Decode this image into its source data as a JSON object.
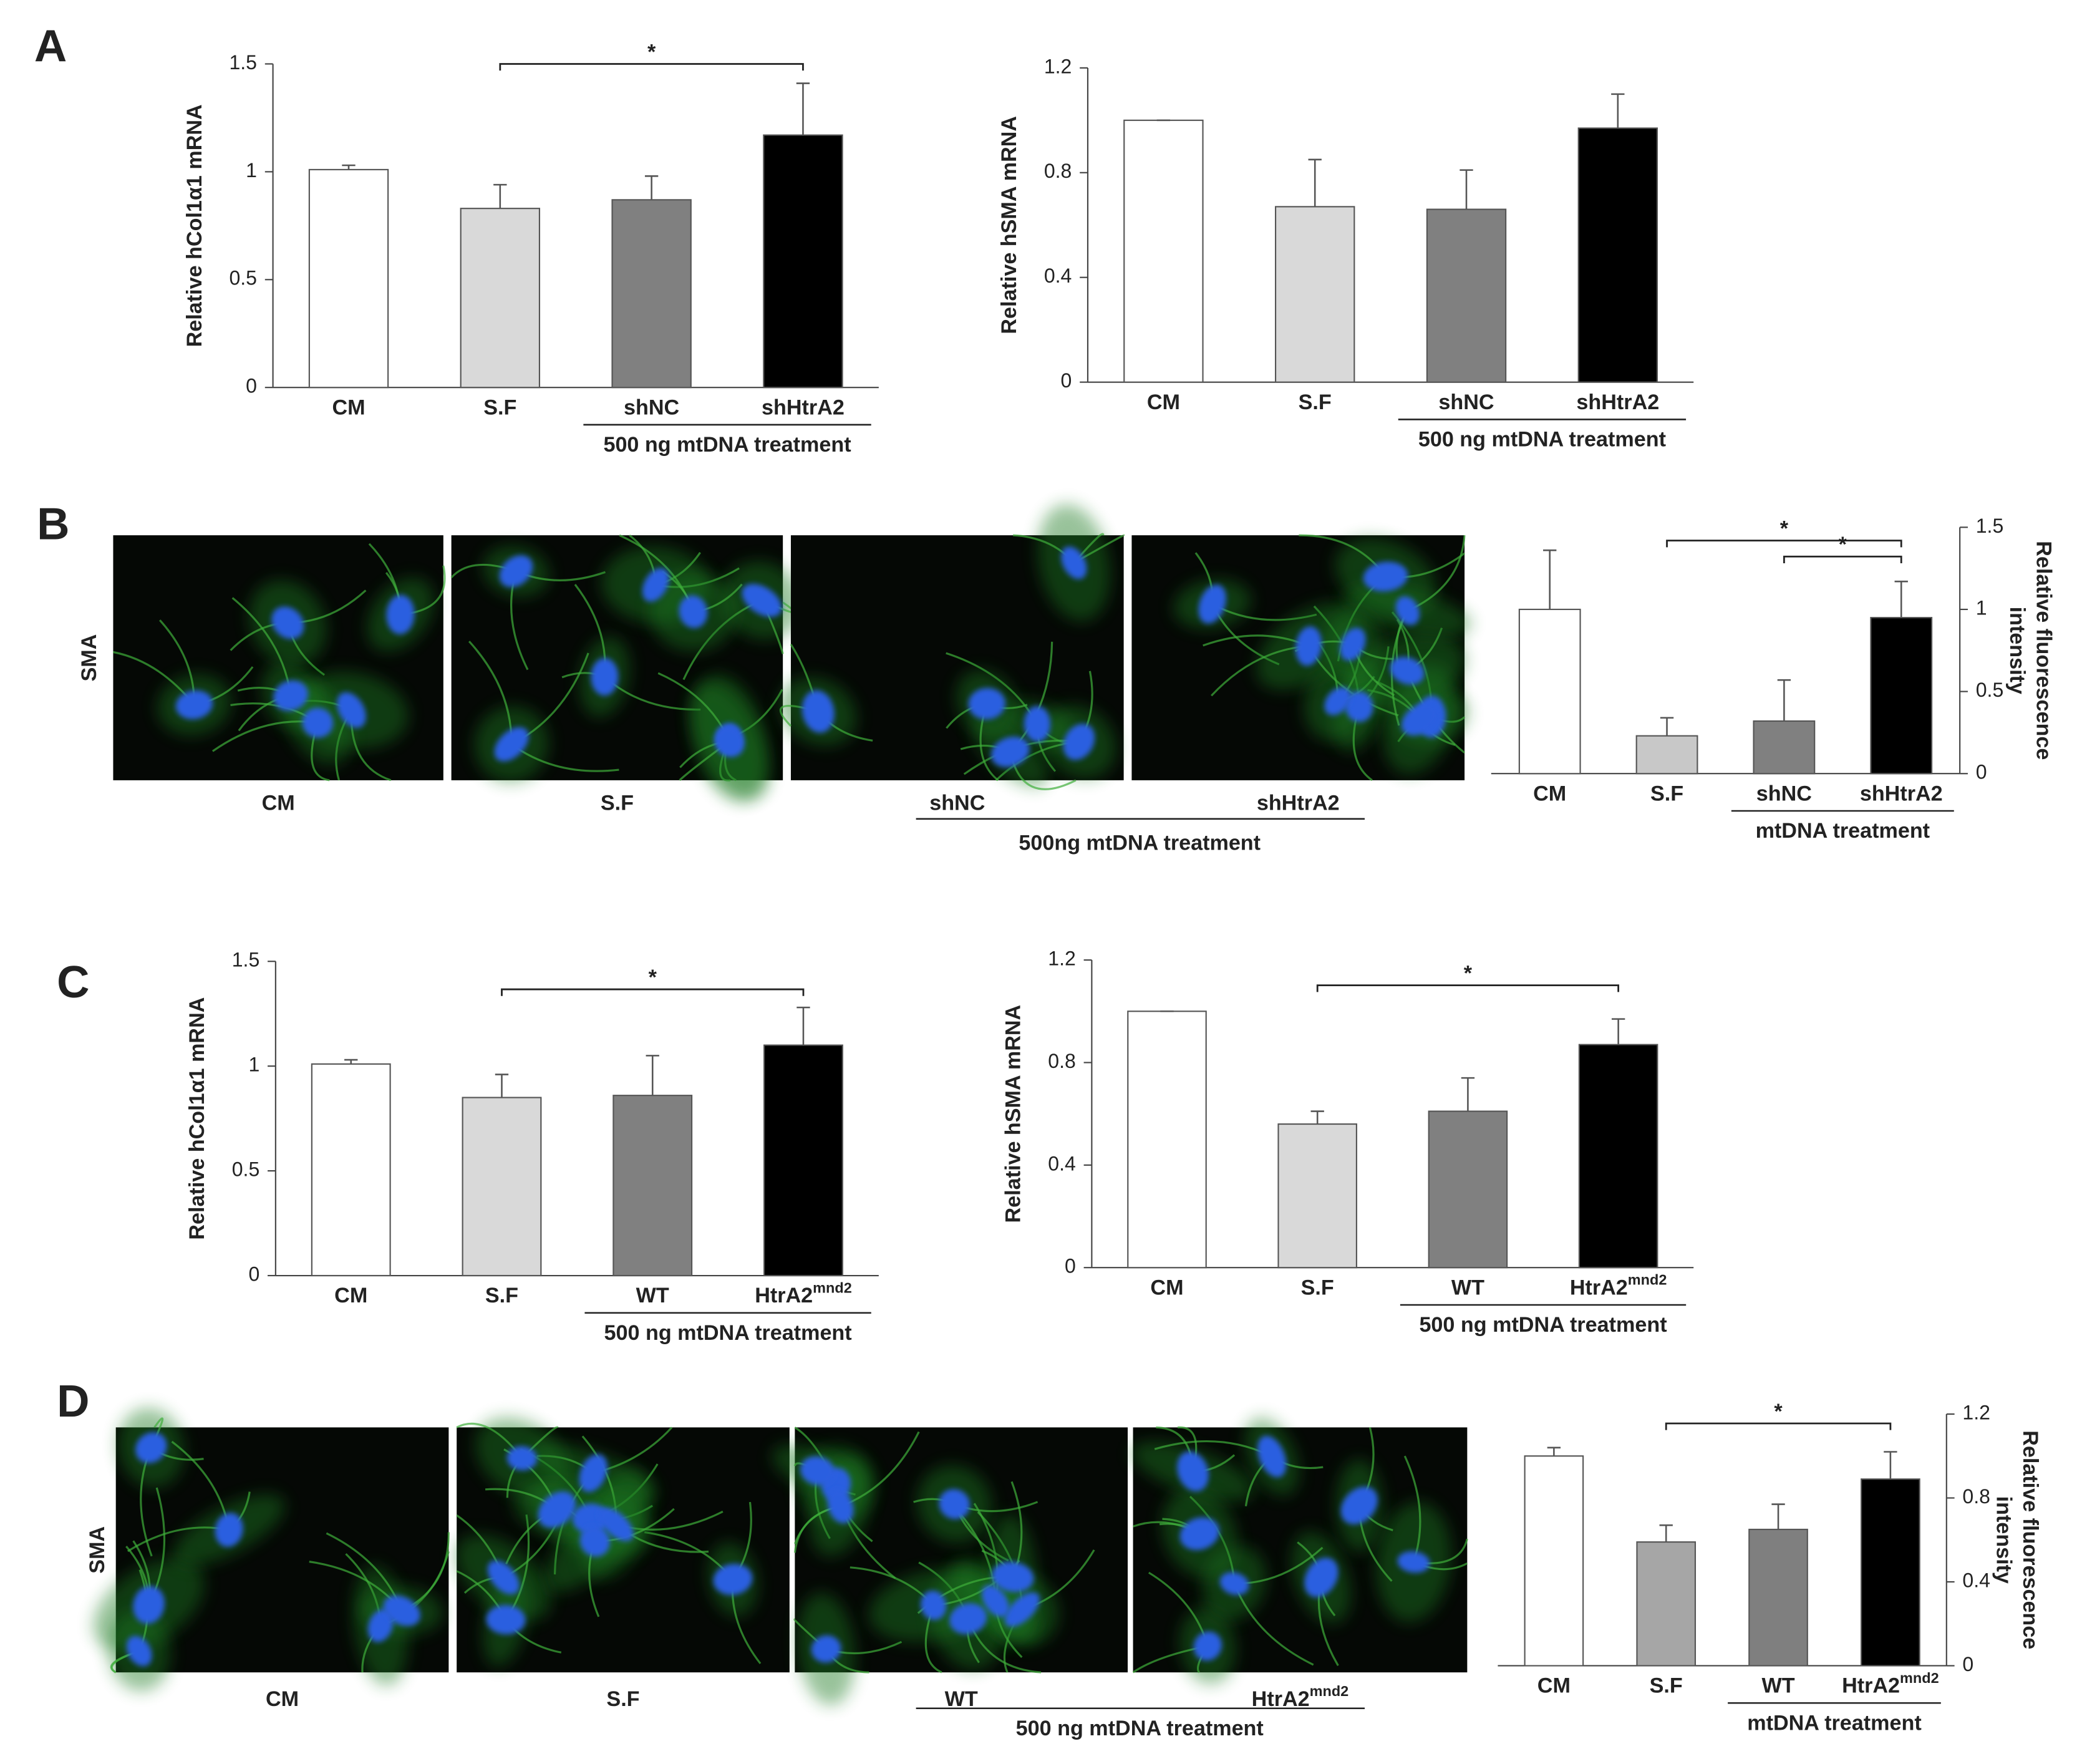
{
  "panels": [
    "A",
    "B",
    "C",
    "D"
  ],
  "image_rows": [
    {
      "row_label": "SMA",
      "captions": [
        "CM",
        "S.F",
        "shNC",
        "shHtrA2"
      ],
      "caption_superscripts": [
        null,
        null,
        null,
        null
      ],
      "group_label": "500ng mtDNA treatment"
    },
    {
      "row_label": "SMA",
      "captions": [
        "CM",
        "S.F",
        "WT",
        "HtrA2"
      ],
      "caption_superscripts": [
        null,
        null,
        null,
        "mnd2"
      ],
      "group_label": "500 ng mtDNA treatment"
    }
  ],
  "chart_data": [
    {
      "type": "bar",
      "ylabel": [
        "Relative hCol1α1 mRNA"
      ],
      "categories": [
        "CM",
        "S.F",
        "shNC",
        "shHtrA2"
      ],
      "category_superscripts": [
        null,
        null,
        null,
        null
      ],
      "values": [
        1.01,
        0.83,
        0.87,
        1.17
      ],
      "errors": [
        0.02,
        0.11,
        0.11,
        0.24
      ],
      "colors": [
        "#ffffff",
        "#d9d9d9",
        "#808080",
        "#000000"
      ],
      "ylim": [
        0,
        1.5
      ],
      "yticks": [
        0,
        0.5,
        1,
        1.5
      ],
      "group_label": "500 ng mtDNA treatment",
      "significance": [
        {
          "from": 1,
          "to": 3,
          "label": "*"
        }
      ]
    },
    {
      "type": "bar",
      "ylabel": [
        "Relative hSMA mRNA"
      ],
      "categories": [
        "CM",
        "S.F",
        "shNC",
        "shHtrA2"
      ],
      "category_superscripts": [
        null,
        null,
        null,
        null
      ],
      "values": [
        1.0,
        0.67,
        0.66,
        0.97
      ],
      "errors": [
        0,
        0.18,
        0.15,
        0.13
      ],
      "colors": [
        "#ffffff",
        "#d9d9d9",
        "#808080",
        "#000000"
      ],
      "ylim": [
        0,
        1.2
      ],
      "yticks": [
        0,
        0.4,
        0.8,
        1.2
      ],
      "group_label": "500 ng mtDNA treatment",
      "significance": []
    },
    {
      "type": "bar",
      "ylabel": [
        "Relative fluorescence",
        "intensity"
      ],
      "categories": [
        "CM",
        "S.F",
        "shNC",
        "shHtrA2"
      ],
      "category_superscripts": [
        null,
        null,
        null,
        null
      ],
      "values": [
        1.0,
        0.23,
        0.32,
        0.95
      ],
      "errors": [
        0.36,
        0.11,
        0.25,
        0.22
      ],
      "colors": [
        "#ffffff",
        "#c8c8c8",
        "#808080",
        "#000000"
      ],
      "ylim": [
        0,
        1.5
      ],
      "yticks": [
        0,
        0.5,
        1,
        1.5
      ],
      "group_label": "mtDNA treatment",
      "significance": [
        {
          "from": 1,
          "to": 3,
          "label": "*"
        },
        {
          "from": 2,
          "to": 3,
          "label": "*"
        }
      ]
    },
    {
      "type": "bar",
      "ylabel": [
        "Relative hCol1α1 mRNA"
      ],
      "categories": [
        "CM",
        "S.F",
        "WT",
        "HtrA2"
      ],
      "category_superscripts": [
        null,
        null,
        null,
        "mnd2"
      ],
      "values": [
        1.01,
        0.85,
        0.86,
        1.1
      ],
      "errors": [
        0.02,
        0.11,
        0.19,
        0.18
      ],
      "colors": [
        "#ffffff",
        "#d9d9d9",
        "#808080",
        "#000000"
      ],
      "ylim": [
        0,
        1.5
      ],
      "yticks": [
        0,
        0.5,
        1,
        1.5
      ],
      "group_label": "500 ng mtDNA treatment",
      "significance": [
        {
          "from": 1,
          "to": 3,
          "label": "*"
        }
      ]
    },
    {
      "type": "bar",
      "ylabel": [
        "Relative hSMA mRNA"
      ],
      "categories": [
        "CM",
        "S.F",
        "WT",
        "HtrA2"
      ],
      "category_superscripts": [
        null,
        null,
        null,
        "mnd2"
      ],
      "values": [
        1.0,
        0.56,
        0.61,
        0.87
      ],
      "errors": [
        0,
        0.05,
        0.13,
        0.1
      ],
      "colors": [
        "#ffffff",
        "#d9d9d9",
        "#808080",
        "#000000"
      ],
      "ylim": [
        0,
        1.2
      ],
      "yticks": [
        0,
        0.4,
        0.8,
        1.2
      ],
      "group_label": "500 ng mtDNA treatment",
      "significance": [
        {
          "from": 1,
          "to": 3,
          "label": "*"
        }
      ]
    },
    {
      "type": "bar",
      "ylabel": [
        "Relative fluorescence",
        "intensity"
      ],
      "categories": [
        "CM",
        "S.F",
        "WT",
        "HtrA2"
      ],
      "category_superscripts": [
        null,
        null,
        null,
        "mnd2"
      ],
      "values": [
        1.0,
        0.59,
        0.65,
        0.89
      ],
      "errors": [
        0.04,
        0.08,
        0.12,
        0.13
      ],
      "colors": [
        "#ffffff",
        "#a6a6a6",
        "#7f7f7f",
        "#000000"
      ],
      "ylim": [
        0,
        1.2
      ],
      "yticks": [
        0,
        0.4,
        0.8,
        1.2
      ],
      "group_label": "mtDNA treatment",
      "significance": [
        {
          "from": 1,
          "to": 3,
          "label": "*"
        }
      ]
    }
  ]
}
